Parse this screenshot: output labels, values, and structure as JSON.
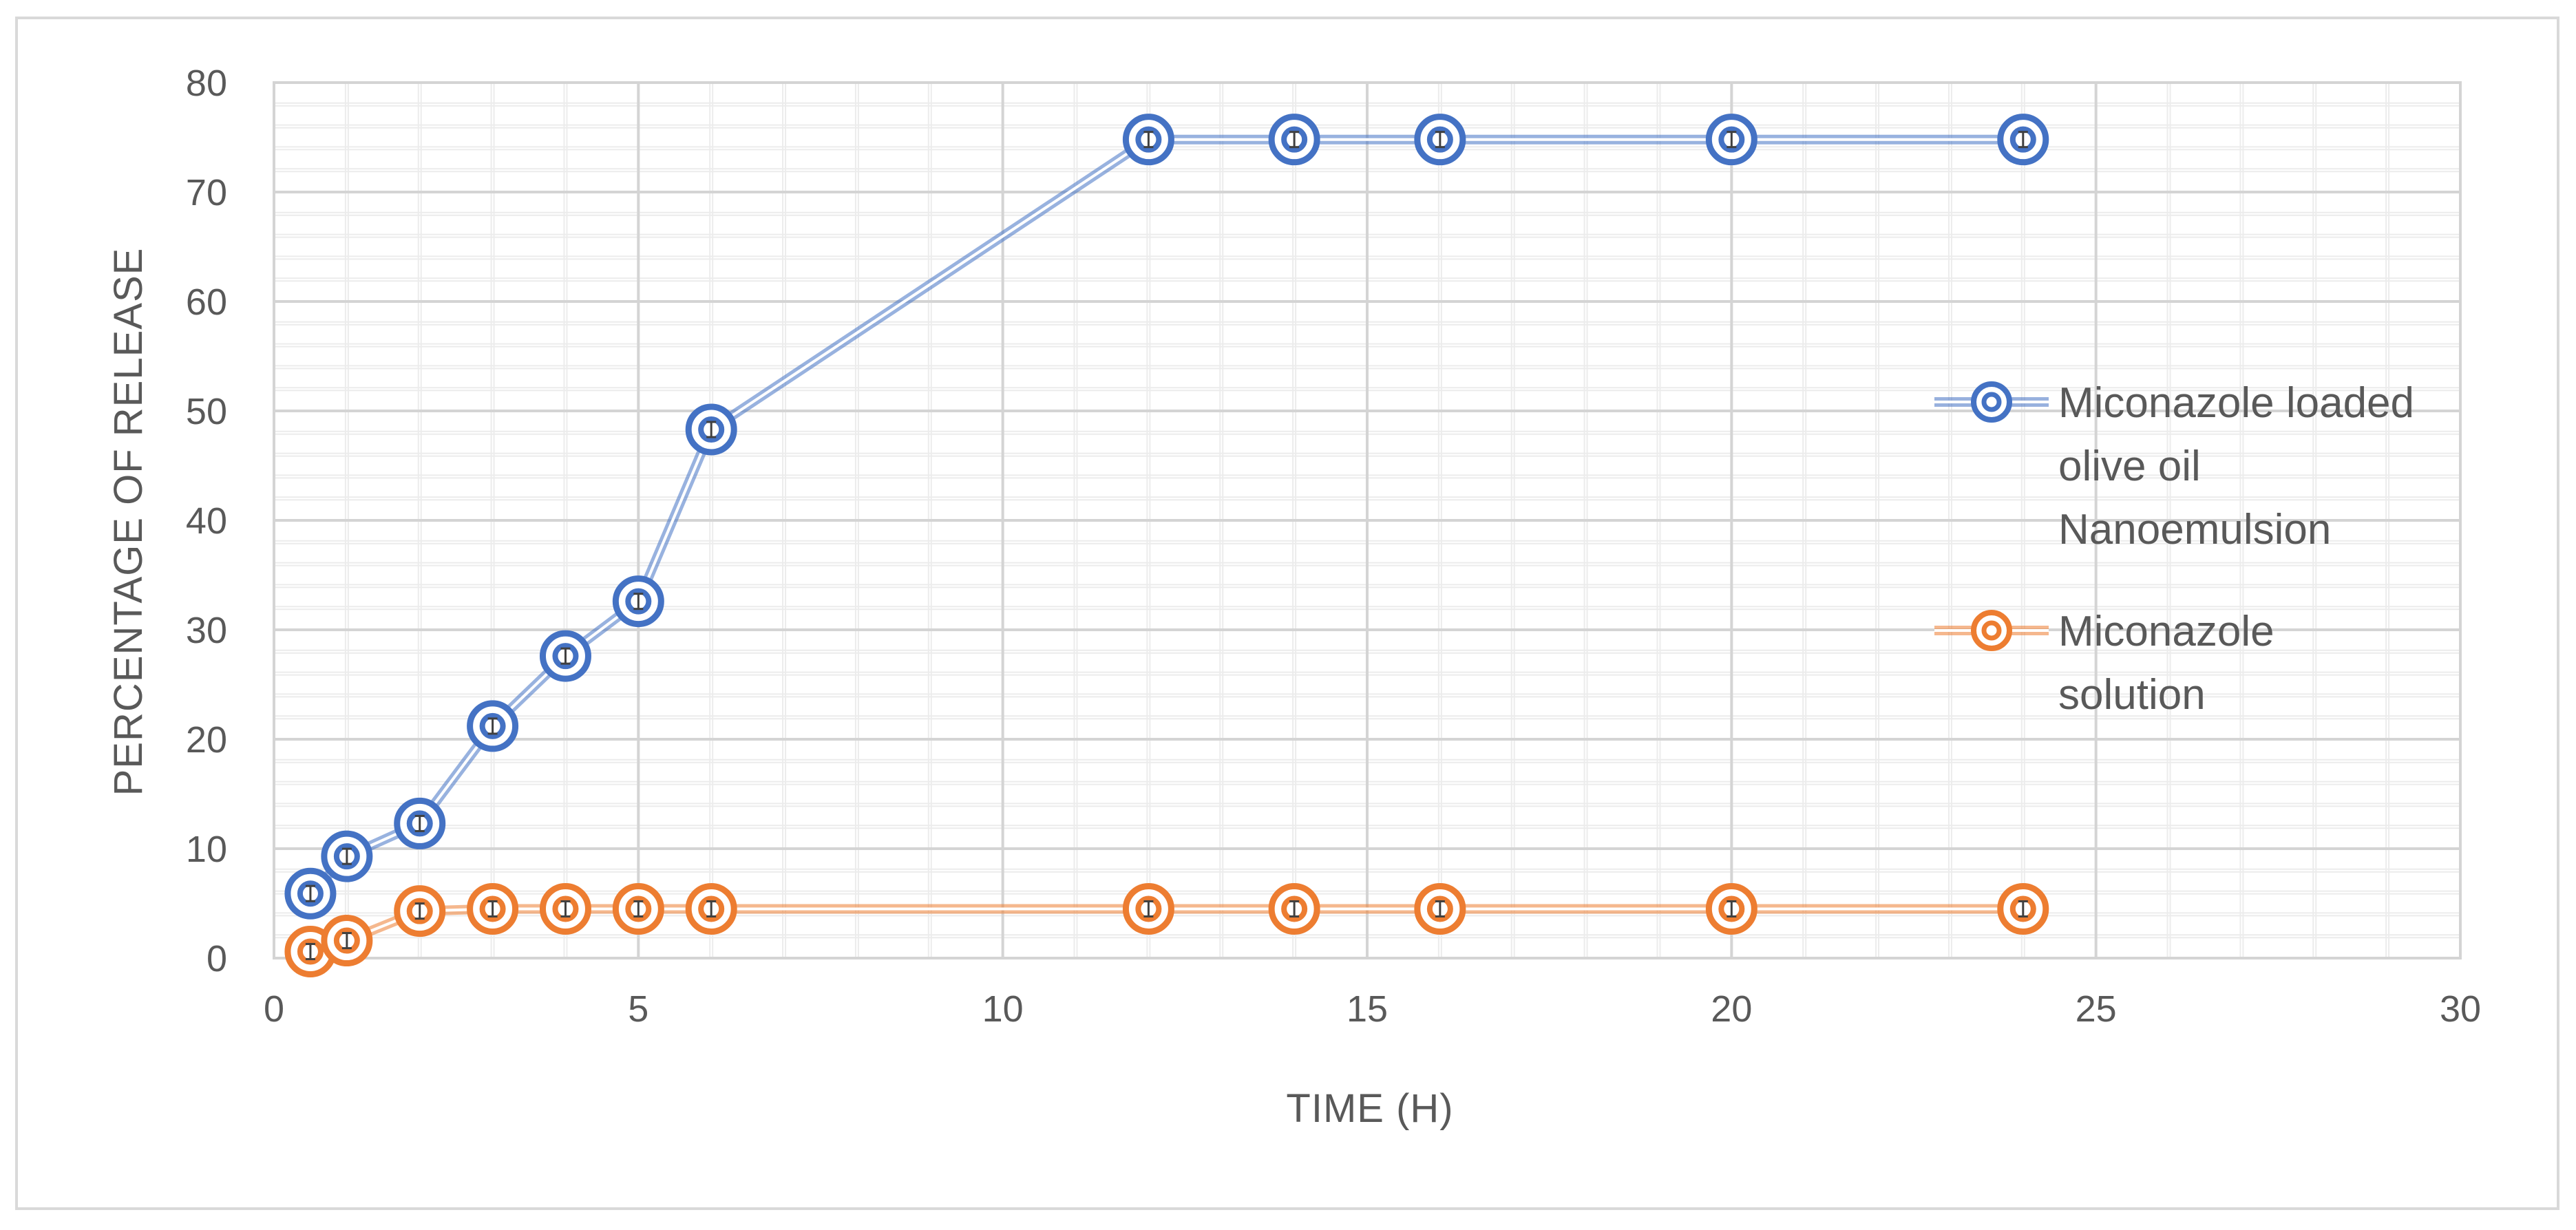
{
  "chart_data": {
    "type": "line",
    "xlabel": "TIME (H)",
    "ylabel": "PERCENTAGE OF RELEASE",
    "xlim": [
      0,
      30
    ],
    "ylim": [
      0,
      80
    ],
    "x_ticks": [
      0,
      5,
      10,
      15,
      20,
      25,
      30
    ],
    "y_ticks": [
      0,
      10,
      20,
      30,
      40,
      50,
      60,
      70,
      80
    ],
    "x_minor_step": 1,
    "y_minor_step": 2,
    "grid": true,
    "legend_position": "right",
    "markers": "double-circle",
    "error_bars": true,
    "x": [
      0.5,
      1,
      2,
      3,
      4,
      5,
      6,
      12,
      14,
      16,
      20,
      24
    ],
    "series": [
      {
        "name_lines": [
          "Miconazole loaded",
          "olive oil",
          "Nanoemulsion"
        ],
        "color": "#4472c4",
        "values": [
          5.9,
          9.3,
          12.3,
          21.2,
          27.6,
          32.6,
          48.3,
          74.8,
          74.8,
          74.8,
          74.8,
          74.8
        ]
      },
      {
        "name_lines": [
          "Miconazole",
          "solution"
        ],
        "color": "#ed7d31",
        "values": [
          0.6,
          1.6,
          4.3,
          4.5,
          4.5,
          4.5,
          4.5,
          4.5,
          4.5,
          4.5,
          4.5,
          4.5
        ]
      }
    ]
  }
}
